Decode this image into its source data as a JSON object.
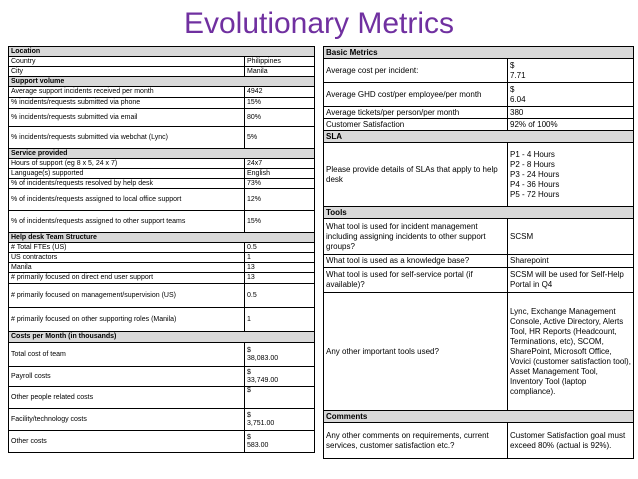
{
  "title": "Evolutionary Metrics",
  "left": {
    "location": {
      "header": "Location",
      "rows": [
        {
          "label": "Country",
          "value": "Philippines"
        },
        {
          "label": "City",
          "value": "Manila"
        }
      ]
    },
    "support_volume": {
      "header": "Support volume",
      "rows": [
        {
          "label": "Average support incidents received per month",
          "value": "4942"
        },
        {
          "label": "% incidents/requests submitted via phone",
          "value": "15%"
        },
        {
          "label": "% incidents/requests submitted via email",
          "value": "80%"
        },
        {
          "label": "% incidents/requests submitted via webchat (Lync)",
          "value": "5%"
        }
      ]
    },
    "service_provided": {
      "header": "Service provided",
      "rows": [
        {
          "label": "Hours of support (eg 8 x 5, 24 x 7)",
          "value": "24x7"
        },
        {
          "label": "Language(s) supported",
          "value": "English"
        },
        {
          "label": "% of incidents/requests resolved by help desk",
          "value": "73%"
        },
        {
          "label": "% of incidents/requests assigned to local office support",
          "value": "12%"
        },
        {
          "label": "% of incidents/requests assigned to other support teams",
          "value": "15%"
        }
      ]
    },
    "help_desk": {
      "header": "Help desk Team Structure",
      "rows": [
        {
          "label": "# Total FTEs (US)",
          "value": "0.5"
        },
        {
          "label": "US contractors",
          "value": "1"
        },
        {
          "label": "Manila",
          "value": "13"
        },
        {
          "label": "# primarily focused on direct end user support",
          "value": "13"
        },
        {
          "label": "# primarily focused on management/supervision (US)",
          "value": "0.5"
        },
        {
          "label": "# primarily focused on other supporting roles (Manila)",
          "value": "1"
        }
      ]
    },
    "costs": {
      "header": "Costs per Month (in thousands)",
      "rows": [
        {
          "label": "Total cost of team",
          "currency": "$",
          "value": "38,083.00"
        },
        {
          "label": "Payroll costs",
          "currency": "$",
          "value": "33,749.00"
        },
        {
          "label": "Other people related costs",
          "currency": "$",
          "value": ""
        },
        {
          "label": "Facility/technology costs",
          "currency": "$",
          "value": "3,751.00"
        },
        {
          "label": "Other costs",
          "currency": "$",
          "value": "583.00"
        }
      ]
    }
  },
  "right": {
    "basic_metrics": {
      "header": "Basic Metrics",
      "rows": [
        {
          "label": "Average cost per incident:",
          "currency": "$",
          "value": "7.71"
        },
        {
          "label": "Average GHD cost/per employee/per month",
          "currency": "$",
          "value": "6.04"
        },
        {
          "label": "Average tickets/per person/per month",
          "value": "380"
        },
        {
          "label": "Customer Satisfaction",
          "value": "92% of 100%"
        }
      ]
    },
    "sla": {
      "header": "SLA",
      "label": "Please provide details of SLAs that apply to help desk",
      "values": [
        "P1 - 4 Hours",
        "P2 - 8 Hours",
        "P3 - 24 Hours",
        "P4 - 36 Hours",
        "P5 - 72 Hours"
      ]
    },
    "tools": {
      "header": "Tools",
      "rows": [
        {
          "label": "What tool is used for incident management including assigning incidents to other support groups?",
          "value": "SCSM"
        },
        {
          "label": "What tool is used as a knowledge base?",
          "value": "Sharepoint"
        },
        {
          "label": "What tool is used for self-service portal (if available)?",
          "value": "SCSM will be used for Self-Help Portal in Q4"
        },
        {
          "label": "Any other important tools used?",
          "value": "Lync, Exchange Management Console, Active Directory, Alerts Tool, HR Reports (Headcount, Terminations, etc), SCOM, SharePoint, Microsoft Office, Vovici (customer satisfaction tool), Asset Management Tool, Inventory Tool (laptop compliance)."
        }
      ]
    },
    "comments": {
      "header": "Comments",
      "label": "Any other comments on requirements, current services, customer satisfaction etc.?",
      "value": "Customer Satisfaction goal must exceed 80% (actual is 92%)."
    }
  }
}
